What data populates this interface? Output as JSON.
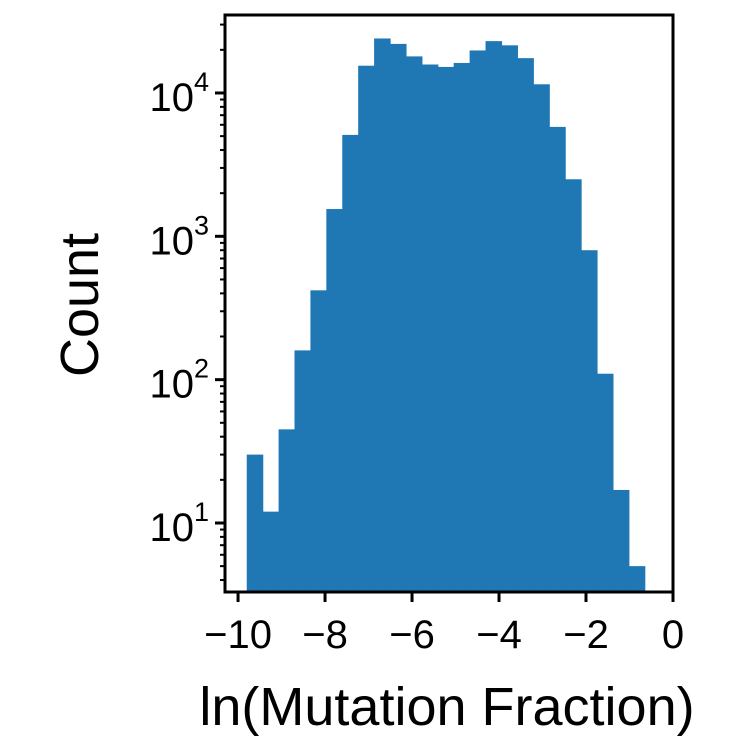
{
  "chart_data": {
    "type": "bar",
    "subtype": "histogram",
    "title": "",
    "xlabel": "ln(Mutation Fraction)",
    "ylabel": "Count",
    "xlim": [
      -10.3,
      0
    ],
    "ylim": [
      3.3,
      35000
    ],
    "yscale": "log",
    "grid": false,
    "legend": "none",
    "bar_color": "#1f77b4",
    "bin_width": 0.366,
    "bin_start": -9.8,
    "counts": [
      30,
      12,
      45,
      160,
      420,
      1550,
      5100,
      15500,
      24000,
      22000,
      18000,
      15800,
      15200,
      16200,
      19800,
      23000,
      21500,
      17500,
      11500,
      5800,
      2500,
      800,
      110,
      17,
      5
    ],
    "xticks": [
      -10,
      -8,
      -6,
      -4,
      -2,
      0
    ],
    "xtick_labels": [
      "−10",
      "−8",
      "−6",
      "−4",
      "−2",
      "0"
    ],
    "yticks": [
      10,
      100,
      1000,
      10000
    ],
    "ytick_labels": [
      {
        "base": "10",
        "exp": "1"
      },
      {
        "base": "10",
        "exp": "2"
      },
      {
        "base": "10",
        "exp": "3"
      },
      {
        "base": "10",
        "exp": "4"
      }
    ]
  }
}
